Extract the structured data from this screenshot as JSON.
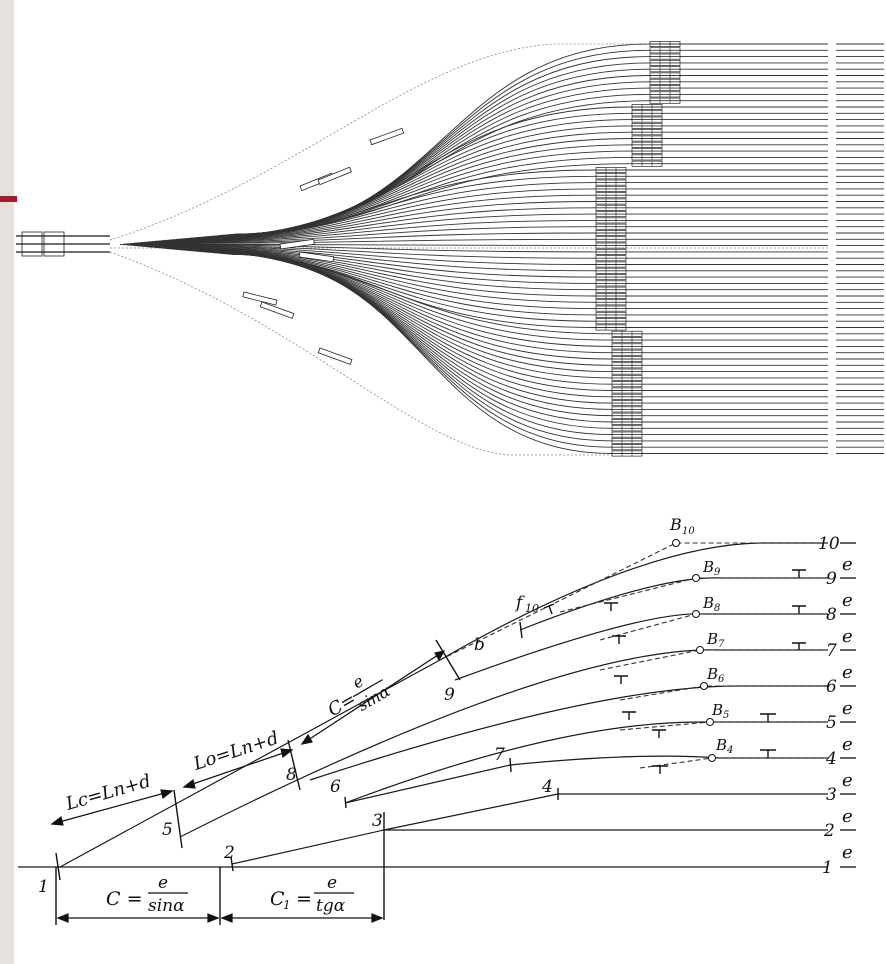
{
  "colors": {
    "background": "#e6e1dc",
    "panel": "#ffffff",
    "accent": "#a21c2c",
    "ink": "#1a1a1a"
  },
  "diagram": {
    "track_labels": [
      "1",
      "2",
      "3",
      "4",
      "5",
      "6",
      "7",
      "8",
      "9",
      "10"
    ],
    "spacing_label": "e",
    "switch_labels": [
      "1",
      "2",
      "3",
      "4",
      "5",
      "6",
      "7",
      "8",
      "9"
    ],
    "marker_b": "b",
    "marker_f": "f",
    "marker_f_sub": "10",
    "signal_prefix": "B",
    "signal_subs": [
      "4",
      "5",
      "6",
      "7",
      "8",
      "9",
      "10"
    ],
    "formula_lc": "Lc=Ln+d",
    "formula_lo": "Lo=Ln+d",
    "formula_c_top": "C=",
    "formula_c_bottom": "C =",
    "formula_c1": "C",
    "formula_c1_sub": "1",
    "formula_c1_eq": "=",
    "frac_num": "e",
    "frac_sin": "sinα",
    "frac_tg": "tgα"
  }
}
